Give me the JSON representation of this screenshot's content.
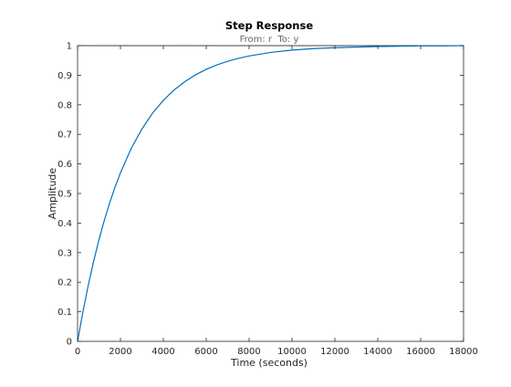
{
  "chart_data": {
    "type": "line",
    "title": "Step Response",
    "subtitle": "From: r  To: y",
    "xlabel": "Time (seconds)",
    "ylabel": "Amplitude",
    "xlim": [
      0,
      18000
    ],
    "ylim": [
      0,
      1
    ],
    "xticks": [
      0,
      2000,
      4000,
      6000,
      8000,
      10000,
      12000,
      14000,
      16000,
      18000
    ],
    "yticks": [
      0,
      0.1,
      0.2,
      0.3,
      0.4,
      0.5,
      0.6,
      0.7,
      0.8,
      0.9,
      1
    ],
    "xtick_labels": [
      "0",
      "2000",
      "4000",
      "6000",
      "8000",
      "10000",
      "12000",
      "14000",
      "16000",
      "18000"
    ],
    "ytick_labels": [
      "0",
      "0.1",
      "0.2",
      "0.3",
      "0.4",
      "0.5",
      "0.6",
      "0.7",
      "0.8",
      "0.9",
      "1"
    ],
    "grid": false,
    "reference_line": 1,
    "series": [
      {
        "color": "#0072bd",
        "x": [
          0,
          250,
          500,
          750,
          1000,
          1250,
          1500,
          1750,
          2000,
          2500,
          3000,
          3500,
          4000,
          4500,
          5000,
          5500,
          6000,
          6500,
          7000,
          7500,
          8000,
          9000,
          10000,
          11000,
          12000,
          13000,
          14000,
          15000,
          16000,
          17000,
          18000
        ],
        "y": [
          0,
          0.1,
          0.19,
          0.271,
          0.344,
          0.41,
          0.469,
          0.522,
          0.57,
          0.652,
          0.718,
          0.772,
          0.815,
          0.85,
          0.878,
          0.901,
          0.92,
          0.935,
          0.947,
          0.957,
          0.965,
          0.977,
          0.985,
          0.99,
          0.993,
          0.995,
          0.997,
          0.998,
          0.999,
          0.999,
          1.0
        ]
      }
    ]
  },
  "colors": {
    "axis": "#262626",
    "title": "#000000",
    "subtitle": "#666666",
    "reference": "#262626"
  }
}
